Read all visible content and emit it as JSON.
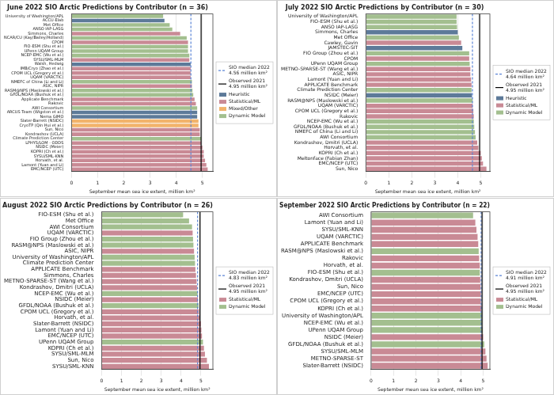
{
  "chart_data": [
    {
      "type": "bar",
      "orientation": "horizontal",
      "title": "June 2022 SIO Arctic Predictions by Contributor (n = 36)",
      "x_label": "September mean sea ice extent, million km²",
      "categories": [
        "University of Washington/APL",
        "ACCU-Elab",
        "Met Office",
        "ANSO IAP-LASG",
        "Simmons, Charles",
        "NCAR/CU (Kay/Bailey/Holland)",
        "CPOM",
        "FIO-ESM (Shu et al.)",
        "UPenn UQAM Group",
        "NCEP-EMC (Wu et al.)",
        "SYSU/SML-MLM",
        "Walsh, Hedwig",
        "IMB/Cryo (Zhao et al.)",
        "CPOM UCL (Gregory et al.)",
        "UQAM (VARCTIC)",
        "NMEFC of China (Li and Li)",
        "ASIC, NIPR",
        "RASM@NPS (Maslowski et al.)",
        "GFDL/NOAA (Bushuk et al.)",
        "Applicate Benchmark",
        "Rakovic",
        "AWI Consortium",
        "ARCUS Team (Wigston et al.)",
        "Nema GIMO",
        "Slater-Barrett (NSIDC)",
        "CryoTP (Qin Hui et al.)",
        "Sun, Nico",
        "Kondrashov (UCLA)",
        "Climate Prediction Center",
        "LPHYS/LOM - ODDS",
        "NSIDC (Meier)",
        "KOPRI (Ch et al.)",
        "SYSU/SML-KNN",
        "Horvath, et al.",
        "Lamont (Yuan and Li)",
        "EMC/NCEP (UTC)"
      ],
      "series": [
        {
          "name": "Heuristic",
          "color": "#5d7a99",
          "values": [
            null,
            3.55,
            null,
            null,
            null,
            null,
            null,
            null,
            null,
            null,
            null,
            4.55,
            null,
            null,
            null,
            null,
            null,
            null,
            null,
            null,
            null,
            null,
            4.8,
            4.8,
            null,
            null,
            null,
            null,
            null,
            null,
            null,
            null,
            null,
            null,
            null,
            null
          ]
        },
        {
          "name": "Statistical/ML",
          "color": "#c98a95",
          "values": [
            null,
            null,
            null,
            null,
            4.15,
            null,
            4.45,
            null,
            null,
            null,
            4.5,
            null,
            4.55,
            4.55,
            4.55,
            null,
            4.6,
            null,
            null,
            4.7,
            4.75,
            null,
            null,
            null,
            null,
            null,
            4.9,
            4.9,
            null,
            4.95,
            5.0,
            5.05,
            5.05,
            5.1,
            5.15,
            5.2
          ]
        },
        {
          "name": "Mixed/Other",
          "color": "#f2b36b",
          "values": [
            null,
            null,
            null,
            null,
            null,
            null,
            null,
            null,
            null,
            null,
            null,
            null,
            null,
            null,
            null,
            null,
            null,
            null,
            null,
            null,
            null,
            null,
            null,
            null,
            4.85,
            4.85,
            null,
            null,
            null,
            null,
            null,
            null,
            null,
            null,
            null,
            null
          ]
        },
        {
          "name": "Dynamic Model",
          "color": "#a3bf8f",
          "values": [
            3.5,
            null,
            3.75,
            3.85,
            null,
            4.4,
            null,
            4.45,
            4.45,
            4.5,
            null,
            null,
            null,
            null,
            null,
            4.6,
            null,
            4.62,
            4.65,
            null,
            null,
            4.8,
            null,
            null,
            null,
            null,
            null,
            null,
            4.95,
            null,
            null,
            null,
            null,
            null,
            null,
            null
          ]
        }
      ],
      "reference_lines": [
        {
          "name": "SIO median 2022",
          "value": 4.56,
          "label": "4.56 million km²",
          "color": "#5a84d6",
          "line_style": "dashed"
        },
        {
          "name": "Observed 2021",
          "value": 4.95,
          "label": "4.95 million km²",
          "color": "#000000",
          "line_style": "solid"
        }
      ],
      "xlim": [
        0,
        5.4
      ],
      "xticks": [
        0,
        1,
        2,
        3,
        4,
        5
      ],
      "grid": true,
      "legend": "right"
    },
    {
      "type": "bar",
      "orientation": "horizontal",
      "title": "July 2022 SIO Arctic Predictions by Contributor (n = 30)",
      "x_label": "September mean sea ice extent, million km²",
      "categories": [
        "University of Washington/APL",
        "FIO-ESM (Shu et al.)",
        "ANSO IAP-LASG",
        "Simmons, Charles",
        "Met Office",
        "Cawley, Gavin",
        "JAMSTEC-SIT",
        "FIO Group (Zhou et al.)",
        "CPOM",
        "UPenn UQAM Group",
        "METNO-SPARSE-ST (Wang et al.)",
        "ASIC, NIPR",
        "Lamont (Yuan and Li)",
        "APPLICATE Benchmark",
        "Climate Prediction Center",
        "NSIDC (Meier)",
        "RASM@NPS (Maslowski et al.)",
        "UQAM (VARCTIC)",
        "CPOM UCL (Gregory et al.)",
        "Rakovic",
        "NCEP-EMC (Wu et al.)",
        "GFDL/NOAA (Bushuk et al.)",
        "NMEFC of China (Li and Li)",
        "AWI Consortium",
        "Kondrashov, Dmitri (UCLA)",
        "Horvath, et al.",
        "KOPRI (Ch et al.)",
        "Meltonface (Fabian Zhan)",
        "EMC/NCEP (UTC)",
        "Sun, Nico"
      ],
      "series": [
        {
          "name": "Heuristic",
          "color": "#5d7a99",
          "values": [
            null,
            null,
            null,
            4.0,
            null,
            null,
            4.2,
            null,
            null,
            null,
            null,
            null,
            null,
            null,
            null,
            4.62,
            null,
            null,
            null,
            null,
            null,
            null,
            null,
            null,
            null,
            null,
            null,
            null,
            null,
            null
          ]
        },
        {
          "name": "Statistical/ML",
          "color": "#c98a95",
          "values": [
            null,
            null,
            null,
            null,
            null,
            4.15,
            null,
            null,
            4.5,
            null,
            4.55,
            4.55,
            4.58,
            4.6,
            null,
            null,
            null,
            4.65,
            4.68,
            4.7,
            null,
            null,
            null,
            null,
            4.85,
            4.9,
            5.0,
            5.05,
            5.1,
            5.25
          ]
        },
        {
          "name": "Dynamic Model",
          "color": "#a3bf8f",
          "values": [
            3.95,
            3.95,
            3.97,
            null,
            4.05,
            null,
            null,
            4.5,
            null,
            4.52,
            null,
            null,
            null,
            null,
            4.6,
            null,
            4.65,
            null,
            null,
            null,
            4.7,
            4.72,
            4.75,
            4.78,
            null,
            null,
            null,
            null,
            null,
            null
          ]
        }
      ],
      "reference_lines": [
        {
          "name": "SIO median 2022",
          "value": 4.64,
          "label": "4.64 million km²",
          "color": "#5a84d6",
          "line_style": "dashed"
        },
        {
          "name": "Observed 2021",
          "value": 4.95,
          "label": "4.95 million km²",
          "color": "#000000",
          "line_style": "solid"
        }
      ],
      "xlim": [
        0,
        5.4
      ],
      "xticks": [
        0,
        1,
        2,
        3,
        4,
        5
      ],
      "grid": true,
      "legend": "right"
    },
    {
      "type": "bar",
      "orientation": "horizontal",
      "title": "August 2022 SIO Arctic Predictions by Contributor (n = 26)",
      "x_label": "September mean sea ice extent, million km²",
      "categories": [
        "FIO-ESM (Shu et al.)",
        "Met Office",
        "AWI Consortium",
        "UQAM (VARCTIC)",
        "FIO Group (Zhou et al.)",
        "RASM@NPS (Maslowski et al.)",
        "ASIC, NIPR",
        "University of Washington/APL",
        "Climate Prediction Center",
        "APPLICATE Benchmark",
        "Simmons, Charles",
        "METNO-SPARSE-ST (Wang et al.)",
        "Kondrashov, Dmitri (UCLA)",
        "NCEP-EMC (Wu et al.)",
        "NSIDC (Meier)",
        "GFDL/NOAA (Bushuk et al.)",
        "CPOM UCL (Gregory et al.)",
        "Horvath, et al.",
        "Slater-Barrett (NSIDC)",
        "Lamont (Yuan and Li)",
        "EMC/NCEP (UTC)",
        "UPenn UQAM Group",
        "KOPRI (Ch et al.)",
        "SYSU/SML-MLM",
        "Sun, Nico",
        "SYSU/SML-KNN"
      ],
      "series": [
        {
          "name": "Statistical/ML",
          "color": "#c98a95",
          "values": [
            null,
            null,
            null,
            4.58,
            null,
            null,
            4.65,
            null,
            null,
            4.72,
            4.75,
            4.78,
            4.8,
            null,
            4.85,
            null,
            4.9,
            4.95,
            5.0,
            5.02,
            5.05,
            null,
            5.15,
            5.2,
            5.3,
            5.4
          ]
        },
        {
          "name": "Dynamic Model",
          "color": "#a3bf8f",
          "values": [
            4.1,
            4.4,
            4.55,
            null,
            4.6,
            4.62,
            null,
            4.68,
            4.7,
            null,
            null,
            null,
            null,
            4.83,
            null,
            4.88,
            null,
            null,
            null,
            null,
            null,
            5.1,
            null,
            null,
            null,
            null
          ]
        }
      ],
      "reference_lines": [
        {
          "name": "SIO median 2022",
          "value": 4.83,
          "label": "4.83 million km²",
          "color": "#5a84d6",
          "line_style": "dashed"
        },
        {
          "name": "Observed 2021",
          "value": 4.95,
          "label": "4.95 million km²",
          "color": "#000000",
          "line_style": "solid"
        }
      ],
      "xlim": [
        0,
        5.6
      ],
      "xticks": [
        0,
        1,
        2,
        3,
        4,
        5
      ],
      "grid": true,
      "legend": "right"
    },
    {
      "type": "bar",
      "orientation": "horizontal",
      "title": "September 2022 SIO Arctic Predictions by Contributor (n = 22)",
      "x_label": "September mean sea ice extent, million km²",
      "categories": [
        "AWI Consortium",
        "Lamont (Yuan and Li)",
        "SYSU/SML-KNN",
        "UQAM (VARCTIC)",
        "APPLICATE Benchmark",
        "RASM@NPS (Maslowski et al.)",
        "Rakovic",
        "Horvath, et al.",
        "FIO-ESM (Shu et al.)",
        "Kondrashov, Dmitri (UCLA)",
        "Sun, Nico",
        "EMC/NCEP (UTC)",
        "CPOM UCL (Gregory et al.)",
        "KOPRI (Ch et al.)",
        "University of Washington/APL",
        "NCEP-EMC (Wu et al.)",
        "UPenn UQAM Group",
        "NSIDC (Meier)",
        "GFDL/NOAA (Bushuk et al.)",
        "SYSU/SML-MLM",
        "METNO-SPARSE-ST",
        "Slater-Barrett (NSIDC)"
      ],
      "series": [
        {
          "name": "Statistical/ML",
          "color": "#c98a95",
          "values": [
            null,
            4.65,
            4.7,
            4.75,
            4.78,
            null,
            4.82,
            4.85,
            null,
            4.87,
            4.88,
            4.9,
            4.9,
            4.93,
            null,
            null,
            null,
            5.0,
            null,
            5.1,
            5.15,
            5.2
          ]
        },
        {
          "name": "Dynamic Model",
          "color": "#a3bf8f",
          "values": [
            4.55,
            null,
            null,
            null,
            null,
            4.8,
            null,
            null,
            4.85,
            null,
            null,
            null,
            null,
            null,
            4.95,
            4.95,
            4.97,
            null,
            5.05,
            null,
            null,
            null
          ]
        }
      ],
      "reference_lines": [
        {
          "name": "SIO median 2022",
          "value": 4.91,
          "label": "4.91 million km²",
          "color": "#5a84d6",
          "line_style": "dashed"
        },
        {
          "name": "Observed 2021",
          "value": 4.95,
          "label": "4.95 million km²",
          "color": "#000000",
          "line_style": "solid"
        }
      ],
      "xlim": [
        0,
        5.3
      ],
      "xticks": [
        0,
        1,
        2,
        3,
        4,
        5
      ],
      "grid": true,
      "legend": "right"
    }
  ]
}
